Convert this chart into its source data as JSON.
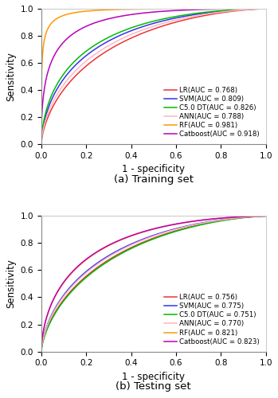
{
  "subplot_a_title": "(a) Training set",
  "subplot_b_title": "(b) Testing set",
  "xlabel": "1 - specificity",
  "ylabel": "Sensitivity",
  "models": [
    "LR",
    "SVM",
    "C5.0 DT",
    "ANN",
    "RF",
    "Catboost"
  ],
  "colors": [
    "#EE3333",
    "#3333EE",
    "#00BB00",
    "#FFB6C1",
    "#FF9900",
    "#BB00BB"
  ],
  "train_aucs": [
    0.768,
    0.809,
    0.826,
    0.788,
    0.981,
    0.918
  ],
  "test_aucs": [
    0.756,
    0.775,
    0.751,
    0.77,
    0.821,
    0.823
  ],
  "legend_labels_train": [
    "LR(AUC = 0.768)",
    "SVM(AUC = 0.809)",
    "C5.0 DT(AUC = 0.826)",
    "ANN(AUC = 0.788)",
    "RF(AUC = 0.981)",
    "Catboost(AUC = 0.918)"
  ],
  "legend_labels_test": [
    "LR(AUC = 0.756)",
    "SVM(AUC = 0.775)",
    "C5.0 DT(AUC = 0.751)",
    "ANN(AUC = 0.770)",
    "RF(AUC = 0.821)",
    "Catboost(AUC = 0.823)"
  ],
  "figsize": [
    3.49,
    5.0
  ],
  "dpi": 100
}
